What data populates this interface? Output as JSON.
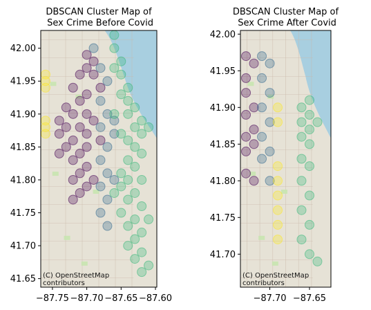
{
  "colors": {
    "cluster_purple": "#440154",
    "cluster_blue": "#31688e",
    "cluster_green": "#35b779",
    "cluster_yellow": "#fde725",
    "water": "#a8cfe0",
    "land": "#e6e2d6"
  },
  "chart_data": [
    {
      "type": "scatter",
      "title_line1": "DBSCAN Cluster Map of",
      "title_line2": " Sex Crime Before Covid",
      "xlim": [
        -87.767,
        -87.598
      ],
      "ylim": [
        41.637,
        42.027
      ],
      "xticks": [
        -87.75,
        -87.7,
        -87.65,
        -87.6
      ],
      "xtick_labels": [
        "−87.75",
        "−87.70",
        "−87.65",
        "−87.60"
      ],
      "yticks": [
        41.65,
        41.7,
        41.75,
        41.8,
        41.85,
        41.9,
        41.95,
        42.0
      ],
      "ytick_labels": [
        "41.65",
        "41.70",
        "41.75",
        "41.80",
        "41.85",
        "41.90",
        "41.95",
        "42.00"
      ],
      "attribution_line1": "(C) OpenStreetMap",
      "attribution_line2": "contributors",
      "series": [
        {
          "color": "#440154",
          "points": [
            [
              -87.7,
              41.99
            ],
            [
              -87.69,
              41.98
            ],
            [
              -87.7,
              41.97
            ],
            [
              -87.71,
              41.96
            ],
            [
              -87.69,
              41.96
            ],
            [
              -87.72,
              41.94
            ],
            [
              -87.7,
              41.93
            ],
            [
              -87.68,
              41.94
            ],
            [
              -87.71,
              41.92
            ],
            [
              -87.73,
              41.91
            ],
            [
              -87.72,
              41.9
            ],
            [
              -87.7,
              41.9
            ],
            [
              -87.74,
              41.89
            ],
            [
              -87.73,
              41.88
            ],
            [
              -87.71,
              41.88
            ],
            [
              -87.69,
              41.89
            ],
            [
              -87.74,
              41.87
            ],
            [
              -87.72,
              41.86
            ],
            [
              -87.7,
              41.87
            ],
            [
              -87.73,
              41.85
            ],
            [
              -87.71,
              41.84
            ],
            [
              -87.72,
              41.83
            ],
            [
              -87.7,
              41.85
            ],
            [
              -87.74,
              41.84
            ],
            [
              -87.71,
              41.81
            ],
            [
              -87.72,
              41.8
            ],
            [
              -87.7,
              41.79
            ],
            [
              -87.71,
              41.78
            ],
            [
              -87.69,
              41.8
            ],
            [
              -87.72,
              41.77
            ],
            [
              -87.7,
              41.82
            ],
            [
              -87.68,
              41.86
            ]
          ]
        },
        {
          "color": "#31688e",
          "points": [
            [
              -87.69,
              42.0
            ],
            [
              -87.68,
              41.97
            ],
            [
              -87.67,
              41.95
            ],
            [
              -87.68,
              41.92
            ],
            [
              -87.67,
              41.9
            ],
            [
              -87.68,
              41.88
            ],
            [
              -87.66,
              41.87
            ],
            [
              -87.67,
              41.85
            ],
            [
              -87.68,
              41.83
            ],
            [
              -87.67,
              41.81
            ],
            [
              -87.68,
              41.79
            ],
            [
              -87.67,
              41.77
            ],
            [
              -87.68,
              41.75
            ],
            [
              -87.67,
              41.73
            ],
            [
              -87.66,
              41.89
            ],
            [
              -87.66,
              41.8
            ]
          ]
        },
        {
          "color": "#35b779",
          "points": [
            [
              -87.66,
              42.02
            ],
            [
              -87.66,
              42.0
            ],
            [
              -87.65,
              41.98
            ],
            [
              -87.66,
              41.97
            ],
            [
              -87.65,
              41.96
            ],
            [
              -87.64,
              41.94
            ],
            [
              -87.65,
              41.93
            ],
            [
              -87.64,
              41.92
            ],
            [
              -87.63,
              41.91
            ],
            [
              -87.64,
              41.9
            ],
            [
              -87.62,
              41.89
            ],
            [
              -87.63,
              41.88
            ],
            [
              -87.61,
              41.88
            ],
            [
              -87.62,
              41.87
            ],
            [
              -87.64,
              41.86
            ],
            [
              -87.63,
              41.85
            ],
            [
              -87.62,
              41.84
            ],
            [
              -87.64,
              41.83
            ],
            [
              -87.63,
              41.82
            ],
            [
              -87.65,
              41.81
            ],
            [
              -87.64,
              41.8
            ],
            [
              -87.62,
              41.8
            ],
            [
              -87.65,
              41.79
            ],
            [
              -87.63,
              41.78
            ],
            [
              -87.64,
              41.77
            ],
            [
              -87.62,
              41.76
            ],
            [
              -87.65,
              41.75
            ],
            [
              -87.63,
              41.74
            ],
            [
              -87.64,
              41.73
            ],
            [
              -87.62,
              41.72
            ],
            [
              -87.63,
              41.71
            ],
            [
              -87.64,
              41.7
            ],
            [
              -87.62,
              41.69
            ],
            [
              -87.63,
              41.68
            ],
            [
              -87.61,
              41.67
            ],
            [
              -87.62,
              41.66
            ],
            [
              -87.65,
              41.87
            ],
            [
              -87.66,
              41.9
            ],
            [
              -87.61,
              41.74
            ],
            [
              -87.66,
              41.78
            ]
          ]
        },
        {
          "color": "#fde725",
          "points": [
            [
              -87.76,
              41.96
            ],
            [
              -87.76,
              41.95
            ],
            [
              -87.76,
              41.94
            ],
            [
              -87.76,
              41.89
            ],
            [
              -87.76,
              41.88
            ],
            [
              -87.76,
              41.87
            ]
          ]
        }
      ]
    },
    {
      "type": "scatter",
      "title_line1": "DBSCAN Cluster Map of",
      "title_line2": " Sex Crime After Covid",
      "xlim": [
        -87.737,
        -87.623
      ],
      "ylim": [
        41.655,
        42.005
      ],
      "xticks": [
        -87.7,
        -87.65
      ],
      "xtick_labels": [
        "−87.70",
        "−87.65"
      ],
      "yticks": [
        41.7,
        41.75,
        41.8,
        41.85,
        41.9,
        41.95,
        42.0
      ],
      "ytick_labels": [
        "41.70",
        "41.75",
        "41.80",
        "41.85",
        "41.90",
        "41.95",
        "42.00"
      ],
      "attribution_line1": "(C) OpenStreetMap",
      "attribution_line2": "contributors",
      "series": [
        {
          "color": "#440154",
          "points": [
            [
              -87.73,
              41.97
            ],
            [
              -87.72,
              41.96
            ],
            [
              -87.73,
              41.94
            ],
            [
              -87.73,
              41.92
            ],
            [
              -87.72,
              41.9
            ],
            [
              -87.73,
              41.89
            ],
            [
              -87.72,
              41.87
            ],
            [
              -87.73,
              41.86
            ],
            [
              -87.72,
              41.85
            ],
            [
              -87.73,
              41.84
            ],
            [
              -87.73,
              41.81
            ],
            [
              -87.72,
              41.8
            ]
          ]
        },
        {
          "color": "#31688e",
          "points": [
            [
              -87.71,
              41.97
            ],
            [
              -87.7,
              41.96
            ],
            [
              -87.71,
              41.94
            ],
            [
              -87.7,
              41.92
            ],
            [
              -87.71,
              41.9
            ],
            [
              -87.7,
              41.88
            ],
            [
              -87.71,
              41.86
            ],
            [
              -87.7,
              41.84
            ],
            [
              -87.71,
              41.83
            ],
            [
              -87.7,
              41.8
            ]
          ]
        },
        {
          "color": "#35b779",
          "points": [
            [
              -87.66,
              41.9
            ],
            [
              -87.65,
              41.89
            ],
            [
              -87.66,
              41.88
            ],
            [
              -87.65,
              41.87
            ],
            [
              -87.66,
              41.86
            ],
            [
              -87.65,
              41.85
            ],
            [
              -87.66,
              41.83
            ],
            [
              -87.65,
              41.82
            ],
            [
              -87.66,
              41.8
            ],
            [
              -87.65,
              41.78
            ],
            [
              -87.66,
              41.76
            ],
            [
              -87.65,
              41.74
            ],
            [
              -87.66,
              41.72
            ],
            [
              -87.65,
              41.7
            ],
            [
              -87.64,
              41.69
            ],
            [
              -87.64,
              41.88
            ],
            [
              -87.65,
              41.91
            ]
          ]
        },
        {
          "color": "#fde725",
          "points": [
            [
              -87.69,
              41.9
            ],
            [
              -87.69,
              41.88
            ],
            [
              -87.69,
              41.82
            ],
            [
              -87.69,
              41.8
            ],
            [
              -87.69,
              41.78
            ],
            [
              -87.69,
              41.76
            ],
            [
              -87.69,
              41.74
            ],
            [
              -87.69,
              41.72
            ]
          ]
        }
      ]
    }
  ]
}
